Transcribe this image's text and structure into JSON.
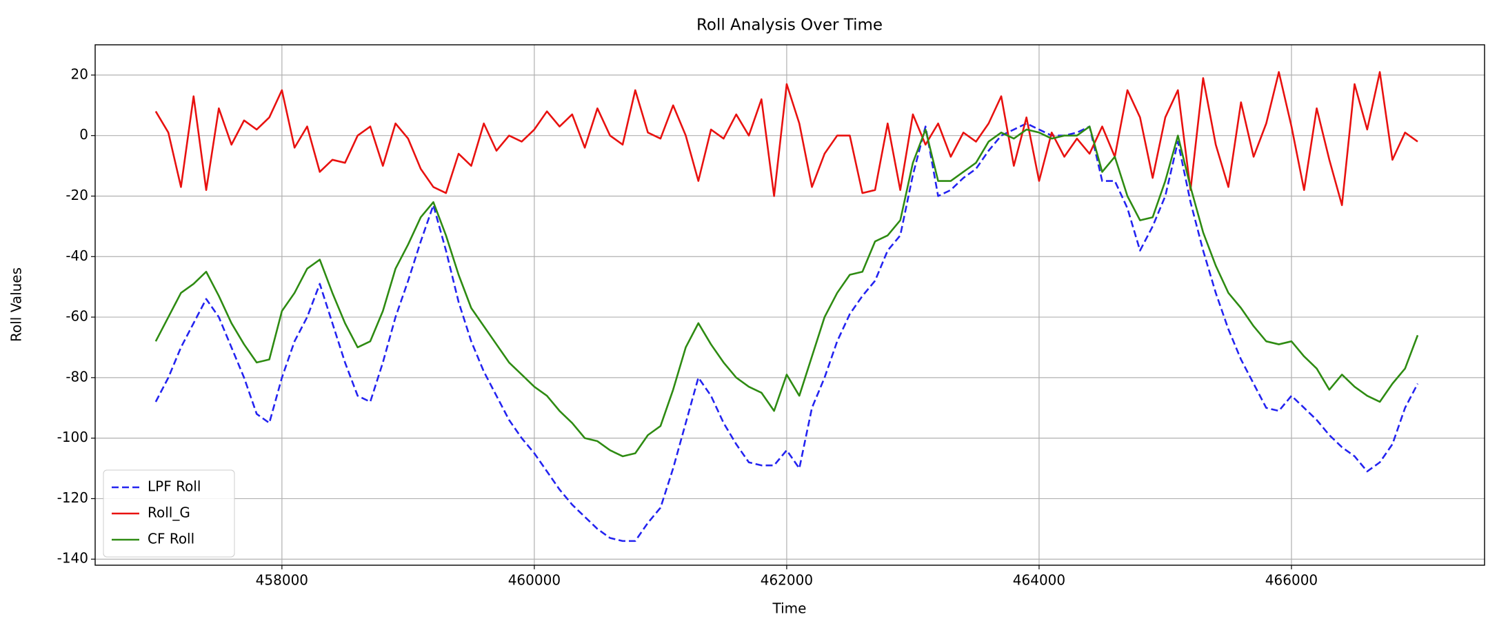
{
  "chart_data": {
    "type": "line",
    "title": "Roll Analysis Over Time",
    "xlabel": "Time",
    "ylabel": "Roll Values",
    "x": [
      457000,
      457100,
      457200,
      457300,
      457400,
      457500,
      457600,
      457700,
      457800,
      457900,
      458000,
      458100,
      458200,
      458300,
      458400,
      458500,
      458600,
      458700,
      458800,
      458900,
      459000,
      459100,
      459200,
      459300,
      459400,
      459500,
      459600,
      459700,
      459800,
      459900,
      460000,
      460100,
      460200,
      460300,
      460400,
      460500,
      460600,
      460700,
      460800,
      460900,
      461000,
      461100,
      461200,
      461300,
      461400,
      461500,
      461600,
      461700,
      461800,
      461900,
      462000,
      462100,
      462200,
      462300,
      462400,
      462500,
      462600,
      462700,
      462800,
      462900,
      463000,
      463100,
      463200,
      463300,
      463400,
      463500,
      463600,
      463700,
      463800,
      463900,
      464000,
      464100,
      464200,
      464300,
      464400,
      464500,
      464600,
      464700,
      464800,
      464900,
      465000,
      465100,
      465200,
      465300,
      465400,
      465500,
      465600,
      465700,
      465800,
      465900,
      466000,
      466100,
      466200,
      466300,
      466400,
      466500,
      466600,
      466700,
      466800,
      466900,
      467000
    ],
    "series": [
      {
        "name": "LPF Roll",
        "color": "#2323f0",
        "linestyle": "dashed",
        "values": [
          -88,
          -80,
          -70,
          -62,
          -54,
          -60,
          -70,
          -80,
          -92,
          -95,
          -80,
          -68,
          -60,
          -49,
          -62,
          -75,
          -86,
          -88,
          -75,
          -60,
          -48,
          -35,
          -23,
          -38,
          -55,
          -68,
          -78,
          -86,
          -94,
          -100,
          -105,
          -111,
          -117,
          -122,
          -126,
          -130,
          -133,
          -134,
          -134,
          -128,
          -123,
          -110,
          -95,
          -80,
          -86,
          -95,
          -102,
          -108,
          -109,
          -109,
          -104,
          -110,
          -90,
          -80,
          -68,
          -59,
          -53,
          -48,
          -38,
          -33,
          -13,
          3,
          -20,
          -18,
          -14,
          -11,
          -5,
          0,
          2,
          4,
          2,
          0,
          0,
          1,
          3,
          -15,
          -15,
          -24,
          -38,
          -30,
          -20,
          -2,
          -22,
          -38,
          -52,
          -64,
          -74,
          -82,
          -90,
          -91,
          -86,
          -90,
          -94,
          -99,
          -103,
          -106,
          -111,
          -108,
          -102,
          -90,
          -82
        ]
      },
      {
        "name": "Roll_G",
        "color": "#e8110f",
        "linestyle": "solid",
        "values": [
          8,
          1,
          -17,
          13,
          -18,
          9,
          -3,
          5,
          2,
          6,
          15,
          -4,
          3,
          -12,
          -8,
          -9,
          0,
          3,
          -10,
          4,
          -1,
          -11,
          -17,
          -19,
          -6,
          -10,
          4,
          -5,
          0,
          -2,
          2,
          8,
          3,
          7,
          -4,
          9,
          0,
          -3,
          15,
          1,
          -1,
          10,
          0,
          -15,
          2,
          -1,
          7,
          0,
          12,
          -20,
          17,
          4,
          -17,
          -6,
          0,
          0,
          -19,
          -18,
          4,
          -18,
          7,
          -3,
          4,
          -7,
          1,
          -2,
          4,
          13,
          -10,
          6,
          -15,
          1,
          -7,
          -1,
          -6,
          3,
          -7,
          15,
          6,
          -14,
          6,
          15,
          -18,
          19,
          -3,
          -17,
          11,
          -7,
          4,
          21,
          3,
          -18,
          9,
          -8,
          -23,
          17,
          2,
          21,
          -8,
          1,
          -2
        ]
      },
      {
        "name": "CF Roll",
        "color": "#2e8b12",
        "linestyle": "solid",
        "values": [
          -68,
          -60,
          -52,
          -49,
          -45,
          -53,
          -62,
          -69,
          -75,
          -74,
          -58,
          -52,
          -44,
          -41,
          -52,
          -62,
          -70,
          -68,
          -58,
          -44,
          -36,
          -27,
          -22,
          -33,
          -46,
          -57,
          -63,
          -69,
          -75,
          -79,
          -83,
          -86,
          -91,
          -95,
          -100,
          -101,
          -104,
          -106,
          -105,
          -99,
          -96,
          -84,
          -70,
          -62,
          -69,
          -75,
          -80,
          -83,
          -85,
          -91,
          -79,
          -86,
          -73,
          -60,
          -52,
          -46,
          -45,
          -35,
          -33,
          -28,
          -9,
          2,
          -15,
          -15,
          -12,
          -9,
          -2,
          1,
          -1,
          2,
          1,
          -1,
          0,
          0,
          3,
          -12,
          -7,
          -20,
          -28,
          -27,
          -15,
          0,
          -17,
          -32,
          -43,
          -52,
          -57,
          -63,
          -68,
          -69,
          -68,
          -73,
          -77,
          -84,
          -79,
          -83,
          -86,
          -88,
          -82,
          -77,
          -66
        ]
      }
    ],
    "xlim": [
      456520,
      467530
    ],
    "ylim": [
      -142,
      30
    ],
    "xticks": [
      458000,
      460000,
      462000,
      464000,
      466000
    ],
    "yticks": [
      -140,
      -120,
      -100,
      -80,
      -60,
      -40,
      -20,
      0,
      20
    ],
    "grid": true,
    "legend": "lower left"
  }
}
